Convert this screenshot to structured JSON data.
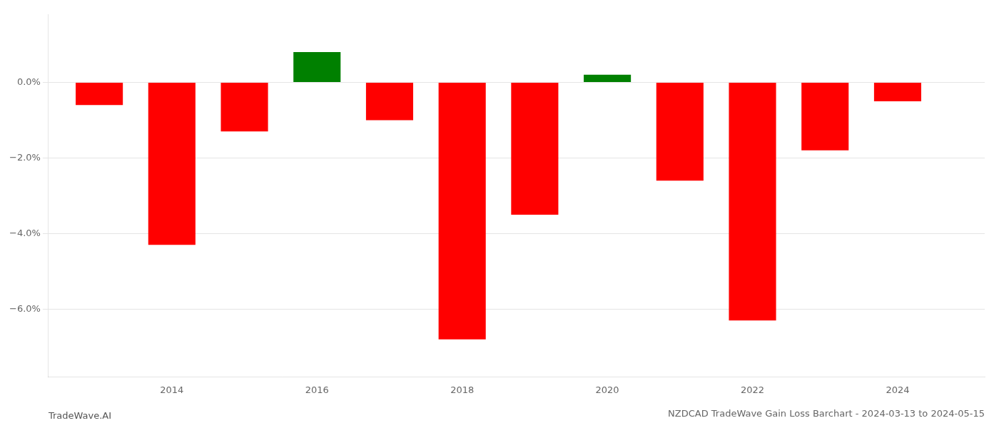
{
  "chart_data": {
    "type": "bar",
    "title": "NZDCAD TradeWave Gain Loss Barchart - 2024-03-13 to 2024-05-15",
    "annotations": [
      "TradeWave.AI"
    ],
    "x": [
      2013,
      2014,
      2015,
      2016,
      2017,
      2018,
      2019,
      2020,
      2021,
      2022,
      2023,
      2024
    ],
    "values": [
      -0.006,
      -0.043,
      -0.013,
      0.008,
      -0.01,
      -0.068,
      -0.035,
      0.002,
      -0.026,
      -0.063,
      -0.018,
      -0.005
    ],
    "colors": [
      "#FF0000",
      "#FF0000",
      "#FF0000",
      "#008000",
      "#FF0000",
      "#FF0000",
      "#FF0000",
      "#008000",
      "#FF0000",
      "#FF0000",
      "#FF0000",
      "#FF0000"
    ],
    "xlim": [
      2012.3,
      2025.2
    ],
    "xticks": [
      2014,
      2016,
      2018,
      2020,
      2022,
      2024
    ],
    "ylim": [
      -0.078,
      0.018
    ],
    "yticks": [
      {
        "value": 0.0,
        "label": "0.0%"
      },
      {
        "value": -0.02,
        "label": "−2.0%"
      },
      {
        "value": -0.04,
        "label": "−4.0%"
      },
      {
        "value": -0.06,
        "label": "−6.0%"
      }
    ],
    "grid": true
  }
}
